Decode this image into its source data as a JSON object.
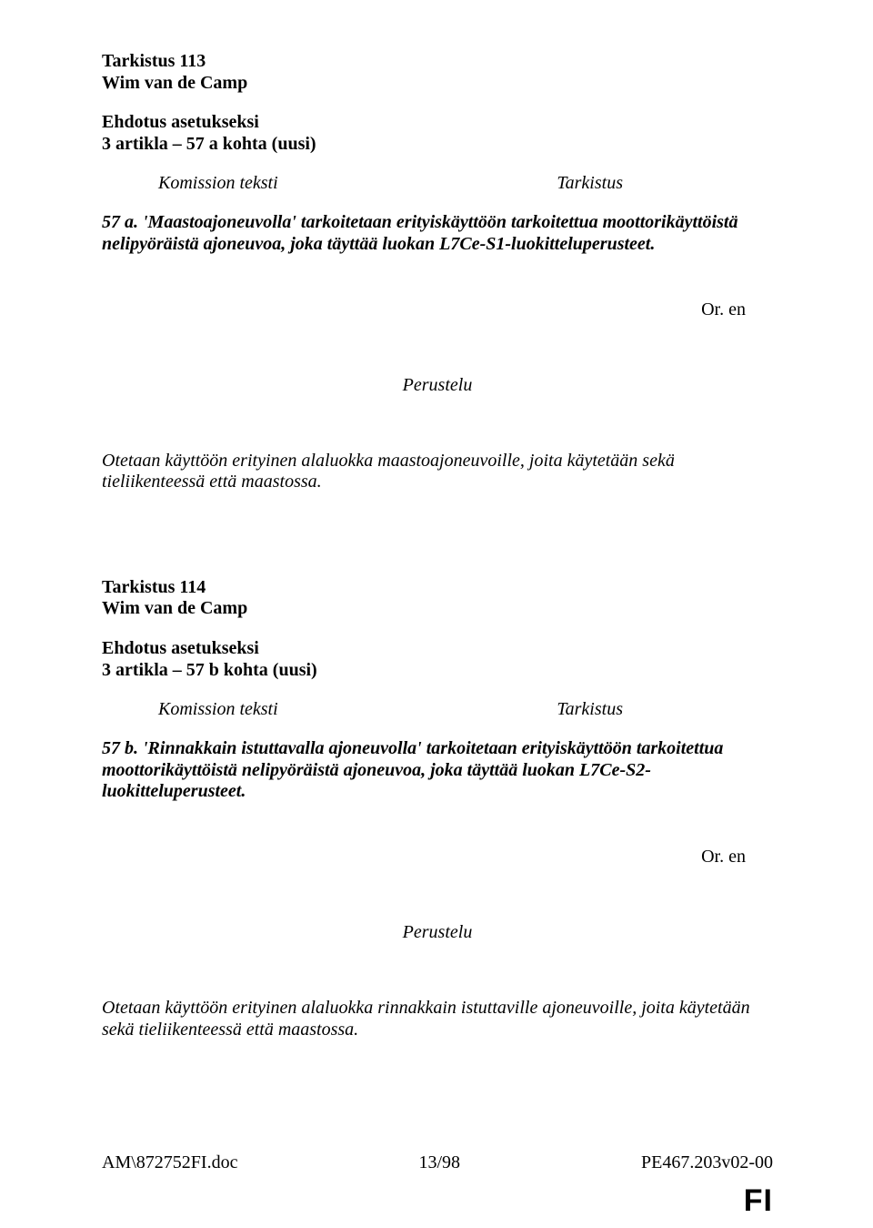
{
  "amend1": {
    "number_line": "Tarkistus 113",
    "author": "Wim van de Camp",
    "heading1": "Ehdotus asetukseksi",
    "heading2": "3 artikla – 57 a kohta (uusi)",
    "col_left": "Komission teksti",
    "col_right": "Tarkistus",
    "text": "57 a. 'Maastoajoneuvolla' tarkoitetaan erityiskäyttöön tarkoitettua moottorikäyttöistä nelipyöräistä ajoneuvoa, joka täyttää luokan L7Ce-S1-luokitteluperusteet.",
    "or_lang": "Or. en",
    "perustelu_label": "Perustelu",
    "perustelu_text": "Otetaan käyttöön erityinen alaluokka maastoajoneuvoille, joita käytetään sekä tieliikenteessä että maastossa."
  },
  "amend2": {
    "number_line": "Tarkistus 114",
    "author": "Wim van de Camp",
    "heading1": "Ehdotus asetukseksi",
    "heading2": "3 artikla – 57 b kohta (uusi)",
    "col_left": "Komission teksti",
    "col_right": "Tarkistus",
    "text": "57 b. 'Rinnakkain istuttavalla ajoneuvolla' tarkoitetaan erityiskäyttöön tarkoitettua moottorikäyttöistä nelipyöräistä ajoneuvoa, joka täyttää luokan L7Ce-S2-luokitteluperusteet.",
    "or_lang": "Or. en",
    "perustelu_label": "Perustelu",
    "perustelu_text": "Otetaan käyttöön erityinen alaluokka rinnakkain istuttaville ajoneuvoille, joita käytetään sekä tieliikenteessä että maastossa."
  },
  "footer": {
    "left": "AM\\872752FI.doc",
    "center": "13/98",
    "right": "PE467.203v02-00"
  },
  "lang_badge": "FI"
}
